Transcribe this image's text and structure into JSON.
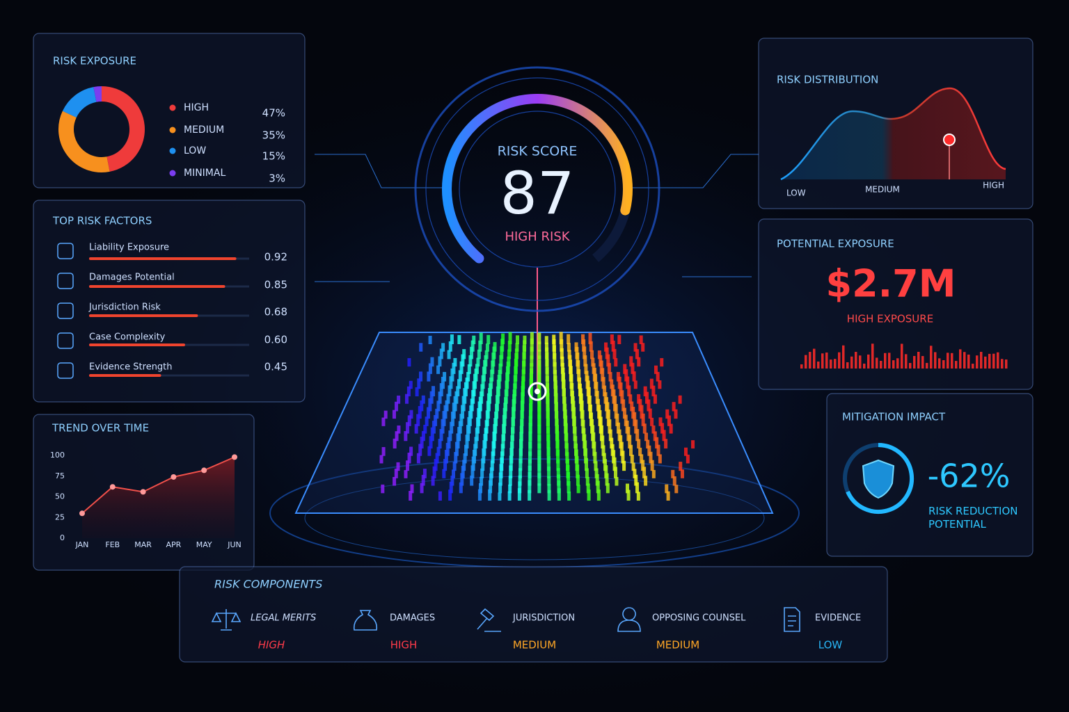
{
  "chart_data": [
    {
      "type": "pie",
      "title": "RISK EXPOSURE",
      "categories": [
        "HIGH",
        "MEDIUM",
        "LOW",
        "MINIMAL"
      ],
      "values": [
        47,
        35,
        15,
        3
      ],
      "value_labels": [
        "47%",
        "35%",
        "15%",
        "3%"
      ],
      "colors": [
        "#ef3b3b",
        "#f7901e",
        "#1e90f0",
        "#7b3df0"
      ]
    },
    {
      "type": "bar",
      "title": "TOP RISK FACTORS",
      "categories": [
        "Liability Exposure",
        "Damages Potential",
        "Jurisdiction Risk",
        "Case Complexity",
        "Evidence Strength"
      ],
      "values": [
        0.92,
        0.85,
        0.68,
        0.6,
        0.45
      ],
      "value_labels": [
        "0.92",
        "0.85",
        "0.68",
        "0.60",
        "0.45"
      ],
      "xlim": [
        0,
        1
      ],
      "color": "#f0442e"
    },
    {
      "type": "line",
      "title": "TREND OVER TIME",
      "categories": [
        "JAN",
        "FEB",
        "MAR",
        "APR",
        "MAY",
        "JUN"
      ],
      "values": [
        30,
        62,
        56,
        74,
        82,
        98
      ],
      "ylim": [
        0,
        100
      ],
      "yticks": [
        0,
        25,
        50,
        75,
        100
      ],
      "color": "#f0504a"
    },
    {
      "type": "gauge",
      "title": "RISK SCORE",
      "value": 87,
      "label": "HIGH RISK",
      "ylim": [
        0,
        100
      ],
      "colors": [
        "#1e90ff",
        "#9b3cf5",
        "#ffb020"
      ]
    }
  ],
  "risk_distribution": {
    "title": "RISK DISTRIBUTION",
    "labels": [
      "LOW",
      "MEDIUM",
      "HIGH"
    ]
  },
  "potential_exposure": {
    "title": "POTENTIAL EXPOSURE",
    "value": "$2.7M",
    "label": "HIGH EXPOSURE"
  },
  "mitigation_impact": {
    "title": "MITIGATION IMPACT",
    "value": "-62%",
    "label": "RISK REDUCTION POTENTIAL"
  },
  "risk_components": {
    "title": "RISK COMPONENTS",
    "items": [
      {
        "name": "LEGAL MERITS",
        "level": "HIGH"
      },
      {
        "name": "DAMAGES",
        "level": "HIGH"
      },
      {
        "name": "JURISDICTION",
        "level": "MEDIUM"
      },
      {
        "name": "OPPOSING COUNSEL",
        "level": "MEDIUM"
      },
      {
        "name": "EVIDENCE",
        "level": "LOW"
      }
    ]
  }
}
